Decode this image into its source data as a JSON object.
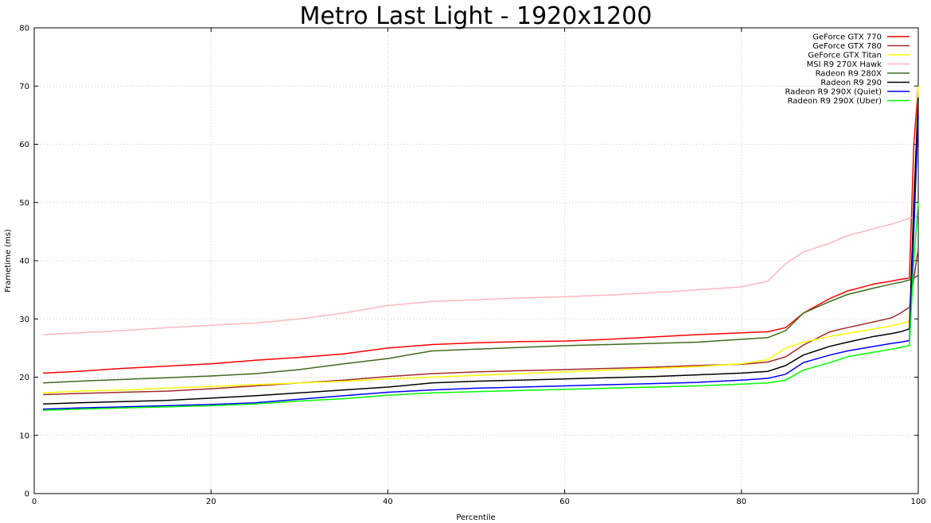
{
  "chart_data": {
    "type": "line",
    "title": "Metro Last Light - 1920x1200",
    "xlabel": "Percentile",
    "ylabel": "Frametime (ms)",
    "xlim": [
      0,
      100
    ],
    "ylim": [
      0,
      80
    ],
    "xticks": [
      0,
      20,
      40,
      60,
      80,
      100
    ],
    "yticks": [
      0,
      10,
      20,
      30,
      40,
      50,
      60,
      70,
      80
    ],
    "grid": true,
    "legend_position": "top-right",
    "x": [
      1,
      5,
      10,
      15,
      20,
      25,
      30,
      35,
      40,
      45,
      50,
      55,
      60,
      65,
      70,
      75,
      80,
      83,
      85,
      87,
      90,
      92,
      95,
      97,
      98,
      99,
      99.5,
      100
    ],
    "series": [
      {
        "name": "GeForce GTX 770",
        "color": "#ff0000",
        "values": [
          20.7,
          21.0,
          21.5,
          21.9,
          22.3,
          22.9,
          23.4,
          24.0,
          25.0,
          25.6,
          25.9,
          26.1,
          26.2,
          26.5,
          26.9,
          27.3,
          27.6,
          27.8,
          28.5,
          31.0,
          33.5,
          34.8,
          36.0,
          36.5,
          36.8,
          37.0,
          60.0,
          70.0
        ]
      },
      {
        "name": "GeForce GTX 780",
        "color": "#a52a2a",
        "values": [
          17.0,
          17.2,
          17.4,
          17.6,
          18.0,
          18.5,
          19.0,
          19.5,
          20.1,
          20.6,
          20.9,
          21.1,
          21.3,
          21.5,
          21.7,
          22.0,
          22.2,
          22.6,
          23.5,
          25.5,
          27.8,
          28.5,
          29.5,
          30.2,
          31.0,
          32.0,
          37.0,
          42.0
        ]
      },
      {
        "name": "GeForce GTX Titan",
        "color": "#ffff00",
        "values": [
          17.3,
          17.6,
          17.8,
          18.1,
          18.4,
          18.7,
          19.0,
          19.3,
          19.7,
          20.0,
          20.3,
          20.6,
          20.9,
          21.2,
          21.5,
          21.8,
          22.3,
          23.0,
          25.0,
          26.0,
          27.0,
          27.5,
          28.3,
          28.8,
          29.2,
          29.6,
          50.0,
          70.0
        ]
      },
      {
        "name": "MSI R9 270X Hawk",
        "color": "#ffb6c1",
        "values": [
          27.3,
          27.6,
          28.0,
          28.5,
          28.9,
          29.3,
          30.0,
          31.0,
          32.3,
          33.0,
          33.3,
          33.6,
          33.8,
          34.1,
          34.5,
          35.0,
          35.5,
          36.5,
          39.5,
          41.5,
          43.0,
          44.3,
          45.5,
          46.3,
          46.8,
          47.3,
          47.5,
          47.8
        ]
      },
      {
        "name": "Radeon R9 280X",
        "color": "#3f6b1a",
        "values": [
          19.0,
          19.3,
          19.6,
          19.9,
          20.2,
          20.6,
          21.3,
          22.3,
          23.2,
          24.5,
          24.8,
          25.1,
          25.4,
          25.6,
          25.8,
          26.0,
          26.5,
          26.8,
          28.0,
          31.0,
          33.0,
          34.2,
          35.3,
          36.0,
          36.3,
          36.7,
          37.0,
          37.5
        ]
      },
      {
        "name": "Radeon R9 290",
        "color": "#000000",
        "values": [
          15.4,
          15.6,
          15.8,
          16.0,
          16.4,
          16.8,
          17.3,
          17.8,
          18.3,
          19.0,
          19.3,
          19.5,
          19.7,
          19.9,
          20.1,
          20.4,
          20.7,
          21.0,
          22.0,
          23.8,
          25.3,
          26.0,
          27.0,
          27.5,
          27.8,
          28.3,
          50.0,
          68.0
        ]
      },
      {
        "name": "Radeon R9 290X (Quiet)",
        "color": "#0000ff",
        "values": [
          14.5,
          14.7,
          14.9,
          15.1,
          15.3,
          15.6,
          16.2,
          16.8,
          17.4,
          17.8,
          18.1,
          18.3,
          18.5,
          18.7,
          18.9,
          19.1,
          19.5,
          19.8,
          20.5,
          22.5,
          23.8,
          24.5,
          25.3,
          25.8,
          26.0,
          26.3,
          45.0,
          65.0
        ]
      },
      {
        "name": "Radeon R9 290X (Uber)",
        "color": "#00ff00",
        "values": [
          14.3,
          14.5,
          14.7,
          14.9,
          15.1,
          15.4,
          15.9,
          16.3,
          16.9,
          17.3,
          17.5,
          17.7,
          17.9,
          18.1,
          18.3,
          18.5,
          18.8,
          19.0,
          19.5,
          21.2,
          22.5,
          23.5,
          24.3,
          24.8,
          25.1,
          25.4,
          40.0,
          50.0
        ]
      }
    ]
  }
}
